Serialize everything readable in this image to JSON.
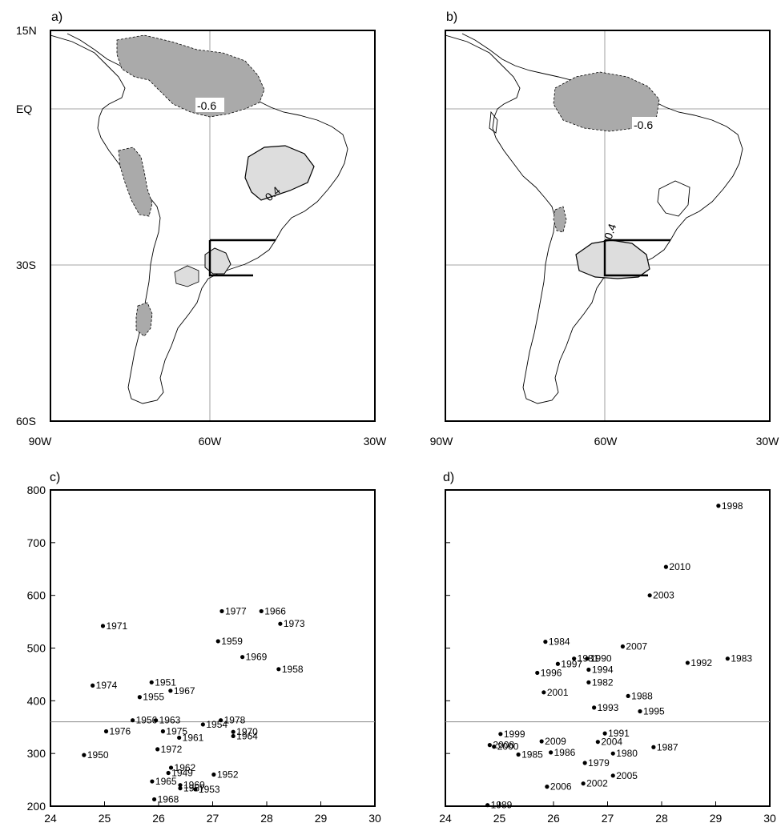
{
  "chart_data": [
    {
      "panel": "a)",
      "type": "map",
      "lat_ticks": [
        "15N",
        "EQ",
        "30S",
        "60S"
      ],
      "lon_ticks": [
        "90W",
        "60W",
        "30W"
      ],
      "contour_labels": [
        "-0.6",
        "0.4"
      ]
    },
    {
      "panel": "b)",
      "type": "map",
      "lon_ticks": [
        "90W",
        "60W",
        "30W"
      ],
      "contour_labels": [
        "-0.6",
        "0.4"
      ]
    },
    {
      "panel": "c)",
      "type": "scatter",
      "xlim": [
        24,
        30
      ],
      "ylim": [
        200,
        800
      ],
      "x_ticks": [
        "24",
        "25",
        "26",
        "27",
        "28",
        "29",
        "30"
      ],
      "y_ticks": [
        "200",
        "300",
        "400",
        "500",
        "600",
        "700",
        "800"
      ],
      "hline": 360,
      "points": [
        {
          "label": "1971",
          "x": 24.97,
          "y": 542
        },
        {
          "label": "1977",
          "x": 27.17,
          "y": 570
        },
        {
          "label": "1966",
          "x": 27.9,
          "y": 570
        },
        {
          "label": "1973",
          "x": 28.25,
          "y": 546
        },
        {
          "label": "1959",
          "x": 27.1,
          "y": 513
        },
        {
          "label": "1969",
          "x": 27.55,
          "y": 483
        },
        {
          "label": "1958",
          "x": 28.22,
          "y": 460
        },
        {
          "label": "1974",
          "x": 24.78,
          "y": 429
        },
        {
          "label": "1951",
          "x": 25.87,
          "y": 435
        },
        {
          "label": "1967",
          "x": 26.22,
          "y": 419
        },
        {
          "label": "1955",
          "x": 25.65,
          "y": 407
        },
        {
          "label": "1956",
          "x": 25.52,
          "y": 363
        },
        {
          "label": "1963",
          "x": 25.95,
          "y": 363
        },
        {
          "label": "1954",
          "x": 26.82,
          "y": 355
        },
        {
          "label": "1978",
          "x": 27.15,
          "y": 363
        },
        {
          "label": "1976",
          "x": 25.03,
          "y": 342
        },
        {
          "label": "1975",
          "x": 26.08,
          "y": 342
        },
        {
          "label": "1961",
          "x": 26.38,
          "y": 330
        },
        {
          "label": "1970",
          "x": 27.38,
          "y": 341
        },
        {
          "label": "1964",
          "x": 27.38,
          "y": 333
        },
        {
          "label": "1972",
          "x": 25.98,
          "y": 308
        },
        {
          "label": "1950",
          "x": 24.62,
          "y": 297
        },
        {
          "label": "1962",
          "x": 26.23,
          "y": 273
        },
        {
          "label": "1949",
          "x": 26.18,
          "y": 263
        },
        {
          "label": "1952",
          "x": 27.02,
          "y": 260
        },
        {
          "label": "1965",
          "x": 25.88,
          "y": 247
        },
        {
          "label": "1960",
          "x": 26.4,
          "y": 240
        },
        {
          "label": "1957",
          "x": 26.4,
          "y": 234
        },
        {
          "label": "1953",
          "x": 26.68,
          "y": 232
        },
        {
          "label": "1968",
          "x": 25.92,
          "y": 213
        }
      ]
    },
    {
      "panel": "d)",
      "type": "scatter",
      "xlim": [
        24,
        30
      ],
      "ylim": [
        200,
        800
      ],
      "x_ticks": [
        "24",
        "25",
        "26",
        "27",
        "28",
        "29",
        "30"
      ],
      "hline": 360,
      "points": [
        {
          "label": "1998",
          "x": 29.05,
          "y": 770
        },
        {
          "label": "2010",
          "x": 28.08,
          "y": 654
        },
        {
          "label": "2003",
          "x": 27.78,
          "y": 600
        },
        {
          "label": "1984",
          "x": 25.85,
          "y": 512
        },
        {
          "label": "2007",
          "x": 27.28,
          "y": 503
        },
        {
          "label": "1981",
          "x": 26.38,
          "y": 480
        },
        {
          "label": "1990",
          "x": 26.62,
          "y": 480
        },
        {
          "label": "1997",
          "x": 26.08,
          "y": 470
        },
        {
          "label": "1994",
          "x": 26.65,
          "y": 459
        },
        {
          "label": "1992",
          "x": 28.48,
          "y": 472
        },
        {
          "label": "1983",
          "x": 29.22,
          "y": 480
        },
        {
          "label": "1996",
          "x": 25.7,
          "y": 453
        },
        {
          "label": "1982",
          "x": 26.65,
          "y": 435
        },
        {
          "label": "2001",
          "x": 25.82,
          "y": 416
        },
        {
          "label": "1988",
          "x": 27.38,
          "y": 409
        },
        {
          "label": "1993",
          "x": 26.75,
          "y": 387
        },
        {
          "label": "1995",
          "x": 27.6,
          "y": 380
        },
        {
          "label": "1999",
          "x": 25.02,
          "y": 337
        },
        {
          "label": "2008",
          "x": 24.82,
          "y": 316
        },
        {
          "label": "2000",
          "x": 24.9,
          "y": 313
        },
        {
          "label": "2009",
          "x": 25.78,
          "y": 323
        },
        {
          "label": "1991",
          "x": 26.95,
          "y": 338
        },
        {
          "label": "2004",
          "x": 26.82,
          "y": 322
        },
        {
          "label": "1987",
          "x": 27.85,
          "y": 312
        },
        {
          "label": "1985",
          "x": 25.35,
          "y": 298
        },
        {
          "label": "1986",
          "x": 25.95,
          "y": 302
        },
        {
          "label": "1980",
          "x": 27.1,
          "y": 300
        },
        {
          "label": "1979",
          "x": 26.58,
          "y": 282
        },
        {
          "label": "2005",
          "x": 27.1,
          "y": 258
        },
        {
          "label": "2006",
          "x": 25.88,
          "y": 237
        },
        {
          "label": "2002",
          "x": 26.55,
          "y": 243
        },
        {
          "label": "1989",
          "x": 24.78,
          "y": 202
        }
      ]
    }
  ]
}
